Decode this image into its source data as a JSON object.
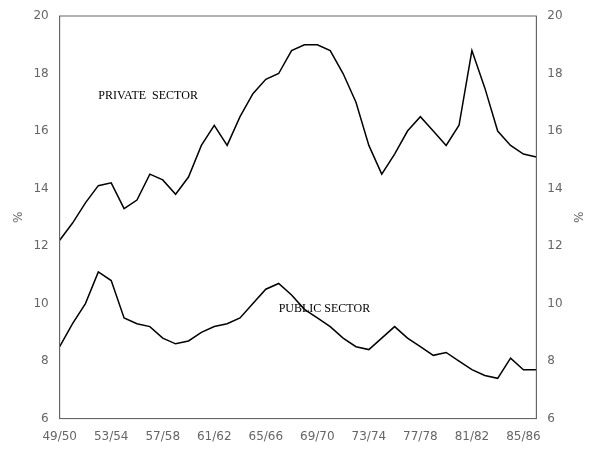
{
  "chart_data": {
    "type": "line",
    "x": [
      1949,
      1950,
      1951,
      1952,
      1953,
      1954,
      1955,
      1956,
      1957,
      1958,
      1959,
      1960,
      1961,
      1962,
      1963,
      1964,
      1965,
      1966,
      1967,
      1968,
      1969,
      1970,
      1971,
      1972,
      1973,
      1974,
      1975,
      1976,
      1977,
      1978,
      1979,
      1980,
      1981,
      1982,
      1983,
      1984,
      1985,
      1986
    ],
    "series": [
      {
        "color": "#000000",
        "values": [
          12.2,
          12.8,
          13.5,
          14.1,
          14.2,
          13.3,
          13.6,
          14.5,
          14.3,
          13.8,
          14.4,
          15.5,
          16.2,
          15.5,
          16.5,
          17.3,
          17.8,
          18.0,
          18.8,
          19.0,
          19.0,
          18.8,
          18.0,
          17.0,
          15.5,
          14.5,
          15.2,
          16.0,
          16.5,
          16.0,
          15.5,
          16.2,
          18.8,
          17.5,
          16.0,
          15.5,
          15.2,
          15.1
        ]
      },
      {
        "color": "#000000",
        "values": [
          8.5,
          9.3,
          10.0,
          11.1,
          10.8,
          9.5,
          9.3,
          9.2,
          8.8,
          8.6,
          8.7,
          9.0,
          9.2,
          9.3,
          9.5,
          10.0,
          10.5,
          10.7,
          10.3,
          9.8,
          9.5,
          9.2,
          8.8,
          8.5,
          8.4,
          8.8,
          9.2,
          8.8,
          8.5,
          8.2,
          8.3,
          8.0,
          7.7,
          7.5,
          7.4,
          8.1,
          7.7,
          7.7
        ]
      }
    ],
    "annotations": [
      {
        "text": "PRIVATE  SECTOR",
        "x": 1952.0,
        "y": 17.0
      },
      {
        "text": "PUBLIC SECTOR",
        "x": 1966.0,
        "y": 9.6
      }
    ],
    "ylabel": "%",
    "y2label": "%",
    "xlim": [
      1949,
      1986
    ],
    "xticks": [
      {
        "value": 1949,
        "label": "49/50"
      },
      {
        "value": 1953,
        "label": "53/54"
      },
      {
        "value": 1957,
        "label": "57/58"
      },
      {
        "value": 1961,
        "label": "61/62"
      },
      {
        "value": 1965,
        "label": "65/66"
      },
      {
        "value": 1969,
        "label": "69/70"
      },
      {
        "value": 1973,
        "label": "73/74"
      },
      {
        "value": 1977,
        "label": "77/78"
      },
      {
        "value": 1981,
        "label": "81/82"
      },
      {
        "value": 1985,
        "label": "85/86"
      }
    ],
    "ylim": [
      6,
      20
    ],
    "yticks": [
      6,
      8,
      10,
      12,
      14,
      16,
      18,
      20
    ],
    "y2lim": [
      6,
      20
    ],
    "y2ticks": [
      6,
      8,
      10,
      12,
      14,
      16,
      18,
      20
    ],
    "grid": false
  }
}
